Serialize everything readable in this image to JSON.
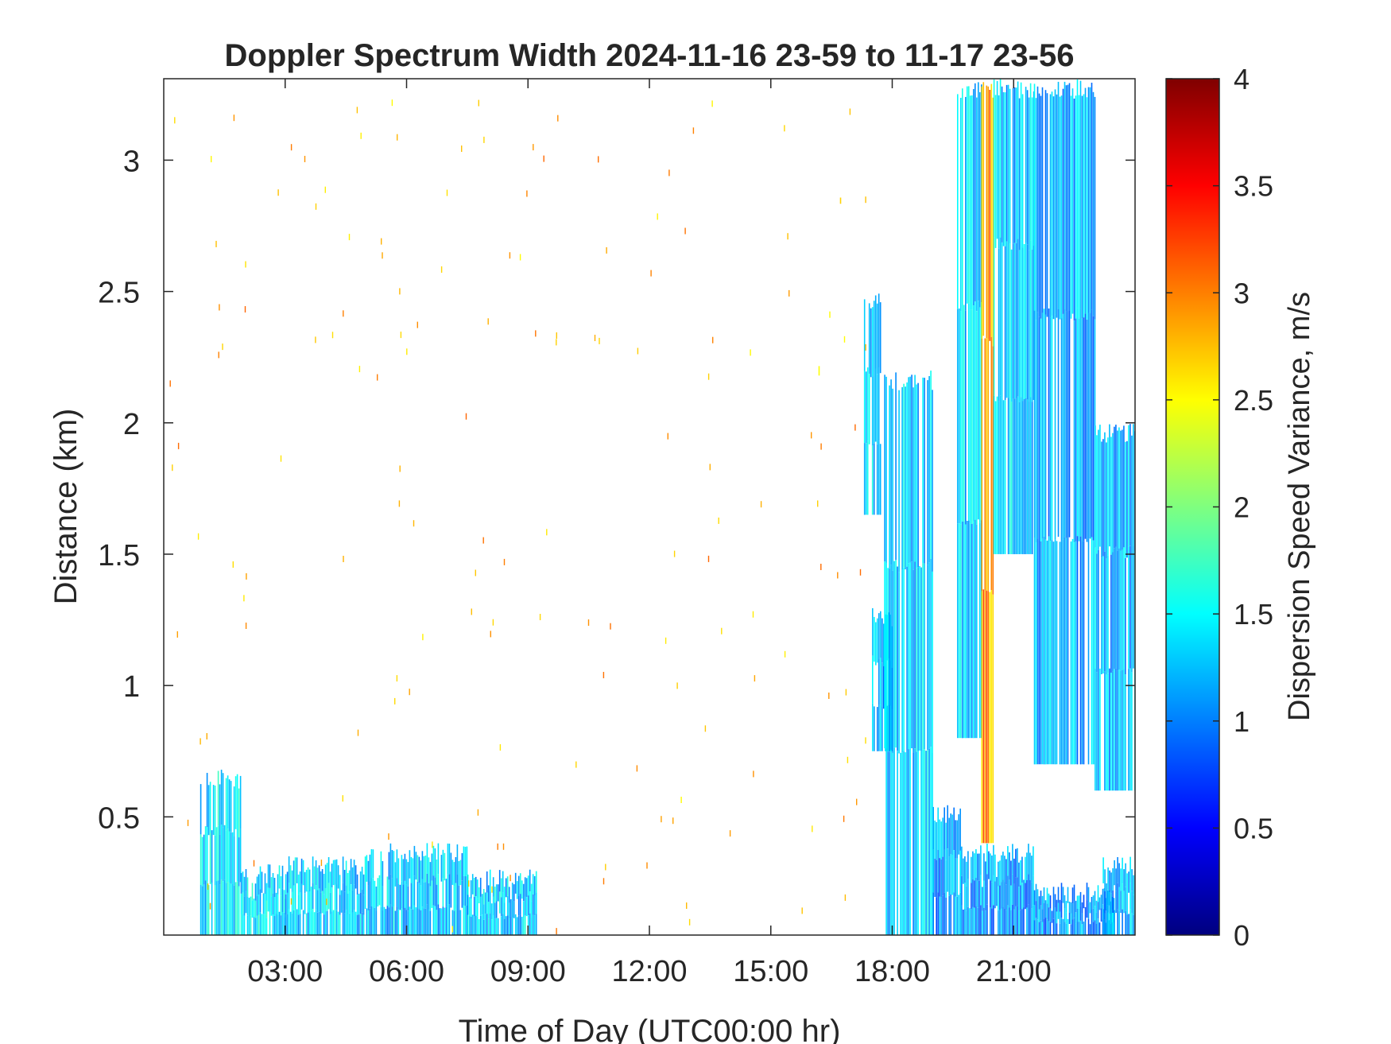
{
  "chart_data": {
    "type": "heatmap",
    "title": "Doppler Spectrum Width 2024-11-16 23-59 to 11-17 23-56",
    "xlabel": "Time of Day (UTC00:00 hr)",
    "ylabel": "Distance (km)",
    "xlim": [
      0,
      24
    ],
    "ylim": [
      0.05,
      3.31
    ],
    "x_ticks": [
      {
        "value": 3,
        "label": "03:00"
      },
      {
        "value": 6,
        "label": "06:00"
      },
      {
        "value": 9,
        "label": "09:00"
      },
      {
        "value": 12,
        "label": "12:00"
      },
      {
        "value": 15,
        "label": "15:00"
      },
      {
        "value": 18,
        "label": "18:00"
      },
      {
        "value": 21,
        "label": "21:00"
      }
    ],
    "y_ticks": [
      {
        "value": 0.5,
        "label": "0.5"
      },
      {
        "value": 1,
        "label": "1"
      },
      {
        "value": 1.5,
        "label": "1.5"
      },
      {
        "value": 2,
        "label": "2"
      },
      {
        "value": 2.5,
        "label": "2.5"
      },
      {
        "value": 3,
        "label": "3"
      }
    ],
    "colorbar": {
      "label": "Dispersion Speed Variance, m/s",
      "colormap": "jet",
      "range": [
        0,
        4
      ],
      "ticks": [
        {
          "value": 0,
          "label": "0"
        },
        {
          "value": 0.5,
          "label": "0.5"
        },
        {
          "value": 1,
          "label": "1"
        },
        {
          "value": 1.5,
          "label": "1.5"
        },
        {
          "value": 2,
          "label": "2"
        },
        {
          "value": 2.5,
          "label": "2.5"
        },
        {
          "value": 3,
          "label": "3"
        },
        {
          "value": 3.5,
          "label": "3.5"
        },
        {
          "value": 4,
          "label": "4"
        }
      ],
      "colors": [
        "#00007f",
        "#0000ff",
        "#007fff",
        "#00ffff",
        "#7fff7f",
        "#ffff00",
        "#ff7f00",
        "#ff0000",
        "#7f0000"
      ]
    },
    "grid": false,
    "regions": [
      {
        "t_start": 0.9,
        "t_end": 1.9,
        "d_min": 0.05,
        "d_max": 0.68,
        "value": 1.4
      },
      {
        "t_start": 1.9,
        "t_end": 3.0,
        "d_min": 0.05,
        "d_max": 0.32,
        "value": 1.4
      },
      {
        "t_start": 3.0,
        "t_end": 5.0,
        "d_min": 0.05,
        "d_max": 0.35,
        "value": 1.3
      },
      {
        "t_start": 5.0,
        "t_end": 7.5,
        "d_min": 0.05,
        "d_max": 0.4,
        "value": 1.3
      },
      {
        "t_start": 7.5,
        "t_end": 9.2,
        "d_min": 0.05,
        "d_max": 0.3,
        "value": 1.3
      },
      {
        "t_start": 17.3,
        "t_end": 17.7,
        "d_min": 1.65,
        "d_max": 2.5,
        "value": 1.3
      },
      {
        "t_start": 17.5,
        "t_end": 18.0,
        "d_min": 0.75,
        "d_max": 1.3,
        "value": 1.2
      },
      {
        "t_start": 17.8,
        "t_end": 19.0,
        "d_min": 0.05,
        "d_max": 2.2,
        "value": 1.3
      },
      {
        "t_start": 19.0,
        "t_end": 19.7,
        "d_min": 0.05,
        "d_max": 0.55,
        "value": 1.1
      },
      {
        "t_start": 19.6,
        "t_end": 20.2,
        "d_min": 0.8,
        "d_max": 3.31,
        "value": 1.3
      },
      {
        "t_start": 19.7,
        "t_end": 21.5,
        "d_min": 0.05,
        "d_max": 0.4,
        "value": 1.1
      },
      {
        "t_start": 20.2,
        "t_end": 20.5,
        "d_min": 0.4,
        "d_max": 3.31,
        "value": 2.9
      },
      {
        "t_start": 20.5,
        "t_end": 21.5,
        "d_min": 1.5,
        "d_max": 3.31,
        "value": 1.3
      },
      {
        "t_start": 21.5,
        "t_end": 23.0,
        "d_min": 0.7,
        "d_max": 3.31,
        "value": 1.2
      },
      {
        "t_start": 21.5,
        "t_end": 23.5,
        "d_min": 0.05,
        "d_max": 0.25,
        "value": 1.1
      },
      {
        "t_start": 23.0,
        "t_end": 24.0,
        "d_min": 0.6,
        "d_max": 2.0,
        "value": 1.2
      },
      {
        "t_start": 23.2,
        "t_end": 24.0,
        "d_min": 0.05,
        "d_max": 0.35,
        "value": 1.2
      },
      {
        "t_start": 16.0,
        "t_end": 17.0,
        "d_min": 0.55,
        "d_max": 3.1,
        "value": 2.8,
        "sparse": true
      }
    ]
  }
}
